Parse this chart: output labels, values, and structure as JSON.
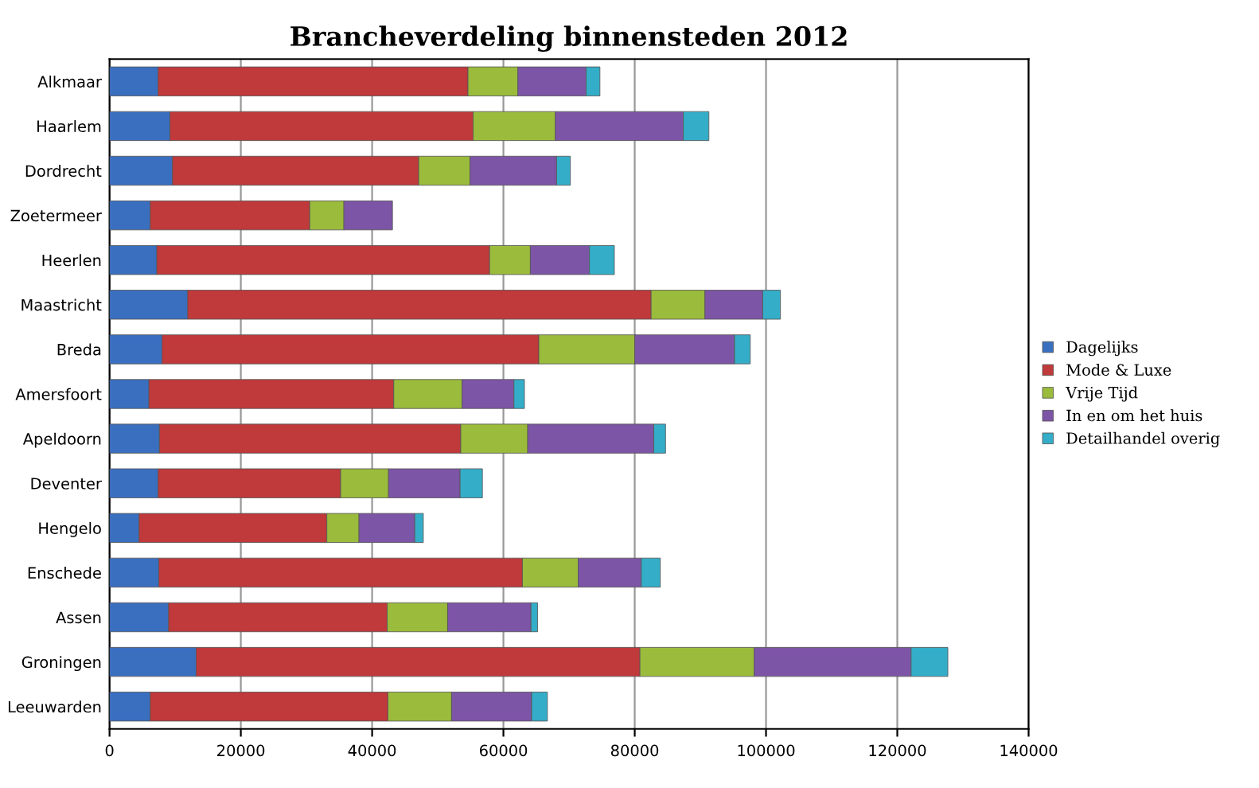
{
  "chart_data": {
    "type": "bar",
    "title": "Brancheverdeling binnensteden 2012",
    "orientation": "horizontal",
    "stacked": true,
    "categories": [
      "Alkmaar",
      "Haarlem",
      "Dordrecht",
      "Zoetermeer",
      "Heerlen",
      "Maastricht",
      "Breda",
      "Amersfoort",
      "Apeldoorn",
      "Deventer",
      "Hengelo",
      "Enschede",
      "Assen",
      "Groningen",
      "Leeuwarden"
    ],
    "series": [
      {
        "name": "Dagelijks",
        "color": "#3a6fc0",
        "values": [
          7400,
          9200,
          9600,
          6200,
          7200,
          11900,
          8000,
          6000,
          7600,
          7400,
          4500,
          7500,
          9000,
          13200,
          6200
        ]
      },
      {
        "name": "Mode & Luxe",
        "color": "#c0393b",
        "values": [
          47200,
          46200,
          37500,
          24300,
          50700,
          70600,
          57400,
          37300,
          45900,
          27800,
          28600,
          55400,
          33300,
          67600,
          36200
        ]
      },
      {
        "name": "Vrije Tijd",
        "color": "#9bbb3c",
        "values": [
          7600,
          12500,
          7800,
          5200,
          6200,
          8200,
          14600,
          10400,
          10200,
          7300,
          4900,
          8500,
          9200,
          17400,
          9700
        ]
      },
      {
        "name": "In en om het huis",
        "color": "#7d55a6",
        "values": [
          10400,
          19500,
          13200,
          7400,
          9000,
          8800,
          15200,
          7900,
          19200,
          10900,
          8500,
          9600,
          12700,
          23900,
          12200
        ]
      },
      {
        "name": "Detailhandel overig",
        "color": "#34adc8",
        "values": [
          2100,
          3900,
          2100,
          null,
          3800,
          2700,
          2400,
          1600,
          1800,
          3400,
          1300,
          2900,
          1000,
          5600,
          2400
        ]
      }
    ],
    "xlim": [
      0,
      140000
    ],
    "xticks": [
      0,
      20000,
      40000,
      60000,
      80000,
      100000,
      120000,
      140000
    ],
    "grid": "x",
    "legend": "right"
  }
}
